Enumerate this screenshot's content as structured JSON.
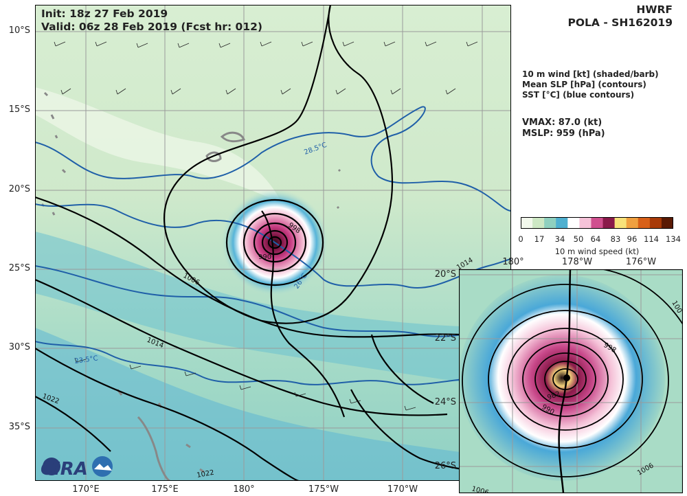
{
  "header": {
    "init": "Init:   18z 27 Feb 2019",
    "valid": "Valid: 06z 28 Feb 2019 (Fcst hr: 012)",
    "model": "HWRF",
    "storm": "POLA - SH162019"
  },
  "legend": {
    "line1": "10 m wind [kt] (shaded/barb)",
    "line2": "Mean SLP [hPa] (contours)",
    "line3": "SST [°C] (blue contours)"
  },
  "metrics": {
    "vmax": "VMAX:  87.0 (kt)",
    "mslp": "MSLP:  959 (hPa)"
  },
  "colorbar": {
    "ticks": [
      "0",
      "17",
      "34",
      "50",
      "64",
      "83",
      "96",
      "114",
      "134"
    ],
    "label": "10 m wind speed (kt)",
    "colors": [
      "#f2f8ec",
      "#cde8c4",
      "#8fd0bf",
      "#4fb0d0",
      "#ffffff",
      "#f5c2d8",
      "#d0508f",
      "#8a1a4a",
      "#f8e27a",
      "#f0a040",
      "#d86018",
      "#a83a08",
      "#5a1a04"
    ]
  },
  "main_map": {
    "lat_labels": [
      "10°S",
      "15°S",
      "20°S",
      "25°S",
      "30°S",
      "35°S"
    ],
    "lon_labels": [
      "170°E",
      "175°E",
      "180°",
      "175°W",
      "170°W"
    ],
    "contour_labels": [
      "1006",
      "1014",
      "1022",
      "1022",
      "1014",
      "998",
      "990"
    ],
    "sst_labels": [
      "28.5°C",
      "23.5°C",
      "26°C"
    ]
  },
  "inset_map": {
    "lon_labels": [
      "180°",
      "178°W",
      "176°W"
    ],
    "lat_labels": [
      "20°S",
      "22°S",
      "24°S",
      "26°S"
    ],
    "contour_labels": [
      "998",
      "990",
      "982",
      "1006",
      "1006",
      "100"
    ]
  },
  "logos": {
    "cira": "CIRA"
  },
  "colors": {
    "land_outline": "#888888",
    "sst_contour": "#1f5fa8",
    "slp_contour": "#000000"
  }
}
